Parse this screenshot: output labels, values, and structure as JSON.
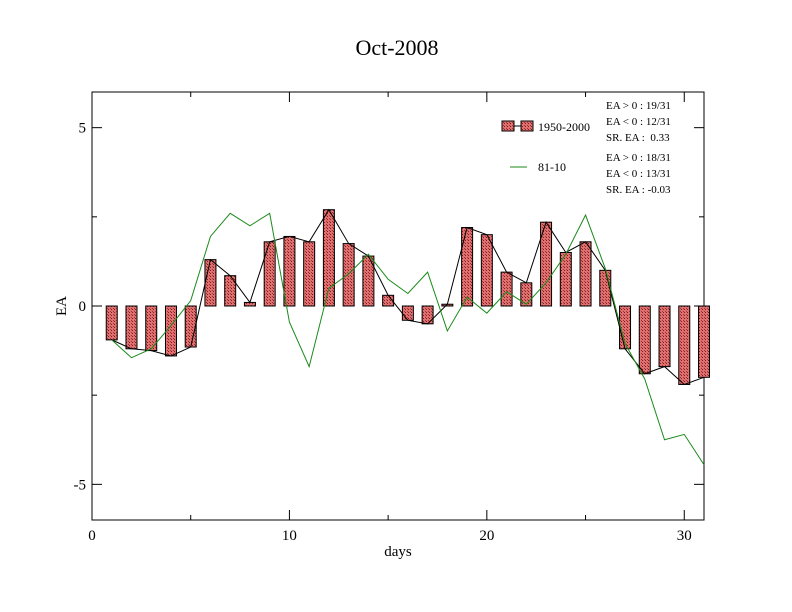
{
  "chart_data": {
    "type": "bar",
    "title": "Oct-2008",
    "xlabel": "days",
    "ylabel": "EA",
    "xlim": [
      0,
      31
    ],
    "ylim": [
      -6,
      6
    ],
    "x_ticks": [
      0,
      10,
      20,
      30
    ],
    "x_tick_labels": [
      "0",
      "10",
      "20",
      "30"
    ],
    "y_ticks": [
      -5,
      0,
      5
    ],
    "y_tick_labels": [
      "-5",
      "0",
      "5"
    ],
    "grid": false,
    "legend_position": "top-right",
    "days": [
      1,
      2,
      3,
      4,
      5,
      6,
      7,
      8,
      9,
      10,
      11,
      12,
      13,
      14,
      15,
      16,
      17,
      18,
      19,
      20,
      21,
      22,
      23,
      24,
      25,
      26,
      27,
      28,
      29,
      30,
      31
    ],
    "series": [
      {
        "name": "1950-2000",
        "style": "bar",
        "color": "#e07070",
        "values": [
          -0.95,
          -1.2,
          -1.25,
          -1.4,
          -1.15,
          1.3,
          0.85,
          0.1,
          1.8,
          1.95,
          1.8,
          2.7,
          1.75,
          1.4,
          0.3,
          -0.4,
          -0.5,
          0.05,
          2.2,
          2.0,
          0.95,
          0.65,
          2.35,
          1.5,
          1.8,
          1.0,
          -1.2,
          -1.9,
          -1.7,
          -2.2,
          -2.0
        ]
      },
      {
        "name": "81-10",
        "style": "line",
        "color": "#1a8a1a",
        "values": [
          -0.95,
          -1.45,
          -1.2,
          -0.55,
          0.15,
          1.95,
          2.6,
          2.25,
          2.6,
          -0.45,
          -1.7,
          0.5,
          0.9,
          1.45,
          0.75,
          0.35,
          0.95,
          -0.7,
          0.25,
          -0.2,
          0.4,
          0.05,
          0.65,
          1.45,
          2.55,
          1.05,
          -1.05,
          -2.05,
          -3.75,
          -3.6,
          -4.45
        ]
      }
    ],
    "stats": [
      {
        "series": "1950-2000",
        "lines": [
          "EA > 0 : 19/31",
          "EA < 0 : 12/31",
          "SR. EA :  0.33"
        ]
      },
      {
        "series": "81-10",
        "lines": [
          "EA > 0 : 18/31",
          "EA < 0 : 13/31",
          "SR. EA : -0.03"
        ]
      }
    ]
  }
}
